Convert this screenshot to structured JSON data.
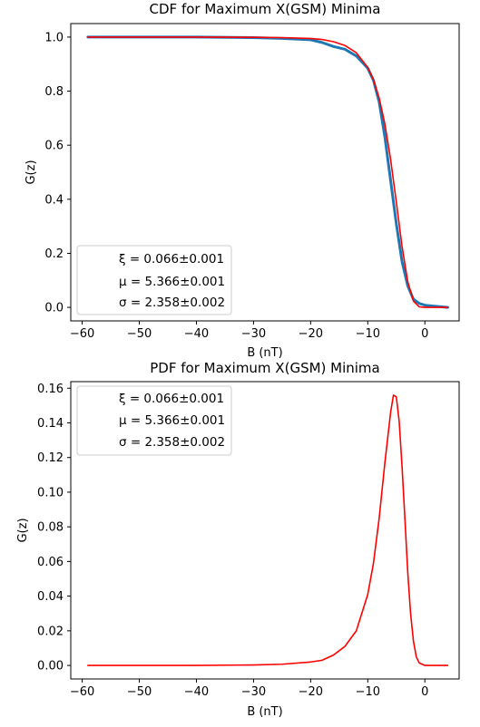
{
  "chart_data": [
    {
      "type": "line",
      "title": "CDF for Maximum X(GSM) Minima",
      "xlabel": "B (nT)",
      "ylabel": "G(z)",
      "xlim": [
        -62,
        6
      ],
      "ylim": [
        -0.05,
        1.05
      ],
      "xticks": [
        -60,
        -50,
        -40,
        -30,
        -20,
        -10,
        0
      ],
      "xtick_labels": [
        "−60",
        "−50",
        "−40",
        "−30",
        "−20",
        "−10",
        "0"
      ],
      "yticks": [
        0.0,
        0.2,
        0.4,
        0.6,
        0.8,
        1.0
      ],
      "ytick_labels": [
        "0.0",
        "0.2",
        "0.4",
        "0.6",
        "0.8",
        "1.0"
      ],
      "legend": [
        "ξ = 0.066±0.001",
        "μ = 5.366±0.001",
        "σ = 2.358±0.002"
      ],
      "legend_position": "lower-left",
      "series": [
        {
          "color": "#1f77b4",
          "x": [
            -59,
            -50,
            -40,
            -30,
            -25,
            -20,
            -18,
            -16,
            -14,
            -12,
            -10,
            -9,
            -8,
            -7,
            -6,
            -5,
            -4,
            -3,
            -2,
            -1,
            0,
            4
          ],
          "y": [
            1.0,
            1.0,
            1.0,
            0.998,
            0.995,
            0.99,
            0.98,
            0.965,
            0.955,
            0.93,
            0.885,
            0.84,
            0.76,
            0.63,
            0.47,
            0.31,
            0.17,
            0.08,
            0.03,
            0.015,
            0.008,
            0.0
          ]
        },
        {
          "color": "#ff0000",
          "x": [
            -59,
            -50,
            -40,
            -30,
            -25,
            -20,
            -18,
            -16,
            -14,
            -12,
            -10,
            -9,
            -8,
            -7,
            -6,
            -5,
            -4,
            -3,
            -2,
            -1,
            0,
            4
          ],
          "y": [
            1.0,
            1.0,
            1.0,
            0.999,
            0.998,
            0.995,
            0.991,
            0.983,
            0.969,
            0.942,
            0.888,
            0.842,
            0.775,
            0.678,
            0.548,
            0.39,
            0.226,
            0.096,
            0.023,
            0.002,
            0.0,
            0.0
          ]
        }
      ]
    },
    {
      "type": "line",
      "title": "PDF for Maximum X(GSM) Minima",
      "xlabel": "B (nT)",
      "ylabel": "G(z)",
      "xlim": [
        -62,
        6
      ],
      "ylim": [
        -0.0078,
        0.1638
      ],
      "xticks": [
        -60,
        -50,
        -40,
        -30,
        -20,
        -10,
        0
      ],
      "xtick_labels": [
        "−60",
        "−50",
        "−40",
        "−30",
        "−20",
        "−10",
        "0"
      ],
      "yticks": [
        0.0,
        0.02,
        0.04,
        0.06,
        0.08,
        0.1,
        0.12,
        0.14,
        0.16
      ],
      "ytick_labels": [
        "0.00",
        "0.02",
        "0.04",
        "0.06",
        "0.08",
        "0.10",
        "0.12",
        "0.14",
        "0.16"
      ],
      "legend": [
        "ξ = 0.066±0.001",
        "μ = 5.366±0.001",
        "σ = 2.358±0.002"
      ],
      "legend_position": "upper-left",
      "series": [
        {
          "color": "#ff0000",
          "x": [
            -59,
            -40,
            -30,
            -25,
            -20,
            -18,
            -16,
            -14,
            -12,
            -10,
            -9,
            -8,
            -7,
            -6,
            -5.5,
            -5,
            -4.5,
            -4,
            -3.5,
            -3,
            -2.5,
            -2,
            -1.5,
            -1,
            0,
            4
          ],
          "y": [
            0.0,
            0.0,
            0.0003,
            0.0007,
            0.002,
            0.003,
            0.006,
            0.011,
            0.02,
            0.041,
            0.059,
            0.085,
            0.117,
            0.146,
            0.156,
            0.155,
            0.141,
            0.115,
            0.085,
            0.054,
            0.03,
            0.014,
            0.005,
            0.0015,
            0.0,
            0.0
          ]
        }
      ]
    }
  ]
}
